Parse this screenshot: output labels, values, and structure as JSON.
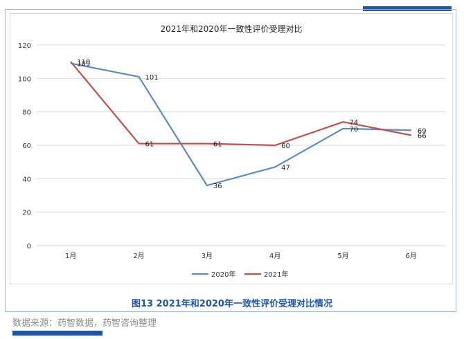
{
  "chart_data": {
    "type": "line",
    "title": "2021年和2020年一致性评价受理对比",
    "categories": [
      "1月",
      "2月",
      "3月",
      "4月",
      "5月",
      "6月"
    ],
    "series": [
      {
        "name": "2020年",
        "color": "#5b8bc5",
        "values": [
          109,
          101,
          36,
          47,
          70,
          69
        ]
      },
      {
        "name": "2021年",
        "color": "#c0504d",
        "values": [
          110,
          61,
          61,
          60,
          74,
          66
        ]
      }
    ],
    "yticks": [
      0,
      20,
      40,
      60,
      80,
      100,
      120
    ],
    "ylim": [
      0,
      120
    ],
    "grid": true,
    "legend": "bottom-center"
  },
  "caption": "图13 2021年和2020年一致性评价受理对比情况",
  "source": "数据来源：药智数据，药智咨询整理",
  "colors": {
    "accent": "#1f56a8",
    "frame": "#9dbad6"
  }
}
